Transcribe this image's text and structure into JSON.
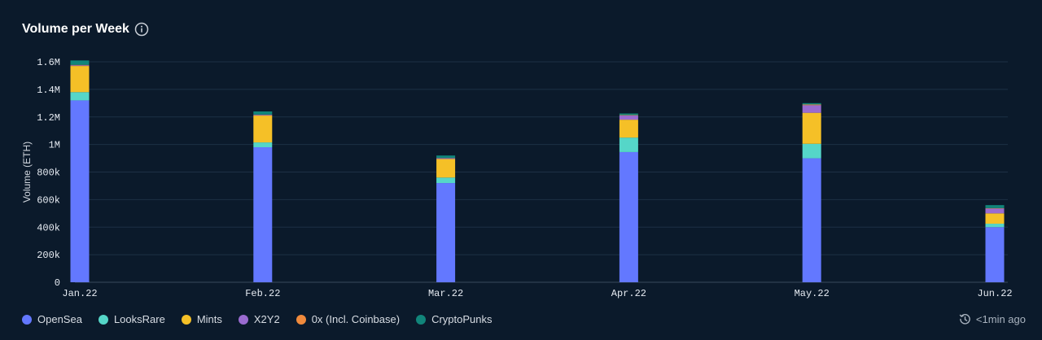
{
  "header": {
    "title": "Volume per Week",
    "info_icon": "info-icon"
  },
  "status": {
    "icon": "history-clock-icon",
    "text": "<1min ago"
  },
  "colors": {
    "background": "#0b1a2b",
    "grid": "#1d3045",
    "OpenSea": "#6378ff",
    "LooksRare": "#55d6c8",
    "Mints": "#f5c027",
    "X2Y2": "#9a6bd0",
    "0x (Incl. Coinbase)": "#f08a3c",
    "CryptoPunks": "#11857a"
  },
  "chart_data": {
    "type": "bar",
    "stacked": true,
    "title": "Volume per Week",
    "xlabel": "",
    "ylabel": "Volume (ETH)",
    "ylim": [
      0,
      1600000
    ],
    "yticks": [
      0,
      200000,
      400000,
      600000,
      800000,
      1000000,
      1200000,
      1400000,
      1600000
    ],
    "ytick_labels": [
      "0",
      "200k",
      "400k",
      "600k",
      "800k",
      "1M",
      "1.2M",
      "1.4M",
      "1.6M"
    ],
    "xtick_labels": [
      "Jan.22",
      "Feb.22",
      "Mar.22",
      "Apr.22",
      "May.22",
      "Jun.22"
    ],
    "categories": [
      "Jan.22",
      "Feb.22",
      "Mar.22",
      "Apr.22",
      "May.22",
      "Jun.22"
    ],
    "grid": true,
    "legend_position": "bottom-left",
    "series": [
      {
        "name": "OpenSea",
        "values": [
          1320000,
          980000,
          720000,
          945000,
          900000,
          400000
        ]
      },
      {
        "name": "LooksRare",
        "values": [
          60000,
          35000,
          40000,
          105000,
          105000,
          25000
        ]
      },
      {
        "name": "Mints",
        "values": [
          190000,
          195000,
          135000,
          130000,
          225000,
          75000
        ]
      },
      {
        "name": "X2Y2",
        "values": [
          5000,
          5000,
          5000,
          30000,
          55000,
          35000
        ]
      },
      {
        "name": "0x (Incl. Coinbase)",
        "values": [
          3000,
          2000,
          2000,
          3000,
          5000,
          3000
        ]
      },
      {
        "name": "CryptoPunks",
        "values": [
          32000,
          23000,
          18000,
          12000,
          10000,
          22000
        ]
      }
    ]
  }
}
